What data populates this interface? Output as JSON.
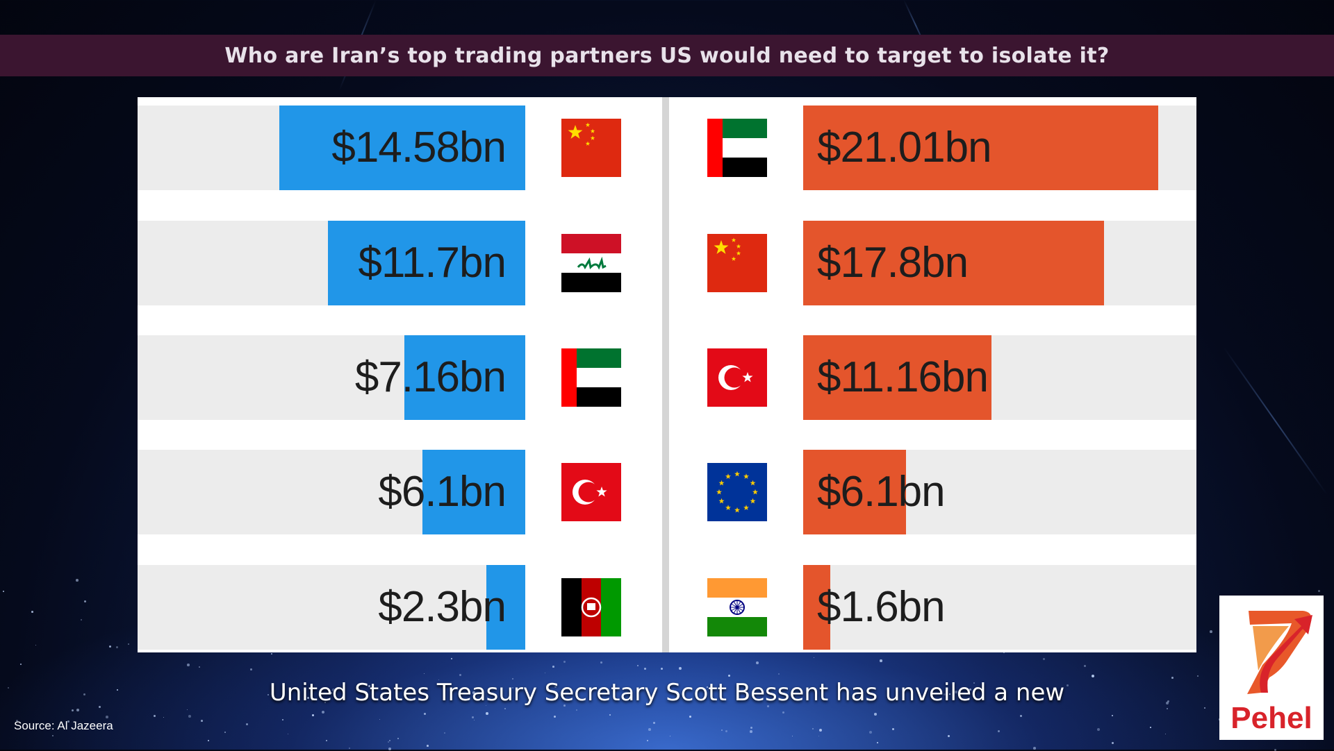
{
  "header": {
    "title": "Who are Iran’s top trading partners US would need to target to isolate it?"
  },
  "colors": {
    "left_bar": "#2196e8",
    "right_bar": "#e4552c",
    "header_bg": "#3b1530"
  },
  "chart_data": [
    {
      "type": "bar",
      "orientation": "horizontal",
      "direction": "right-to-left",
      "categories": [
        "China",
        "Iraq",
        "UAE",
        "Turkey",
        "Afghanistan"
      ],
      "values": [
        14.58,
        11.7,
        7.16,
        6.1,
        2.3
      ],
      "labels": [
        "$14.58bn",
        "$11.7bn",
        "$7.16bn",
        "$6.1bn",
        "$2.3bn"
      ],
      "flags": [
        "china",
        "iraq",
        "uae",
        "turkey",
        "afghanistan"
      ]
    },
    {
      "type": "bar",
      "orientation": "horizontal",
      "direction": "left-to-right",
      "categories": [
        "UAE",
        "China",
        "Turkey",
        "European Union",
        "India"
      ],
      "values": [
        21.01,
        17.8,
        11.16,
        6.1,
        1.6
      ],
      "labels": [
        "$21.01bn",
        "$17.8bn",
        "$11.16bn",
        "$6.1bn",
        "$1.6bn"
      ],
      "flags": [
        "uae",
        "china",
        "turkey",
        "eu",
        "india"
      ]
    }
  ],
  "caption": "United States Treasury Secretary Scott Bessent has unveiled a new",
  "source": "Source: Al Jazeera",
  "logo": {
    "text": "Pehel"
  }
}
